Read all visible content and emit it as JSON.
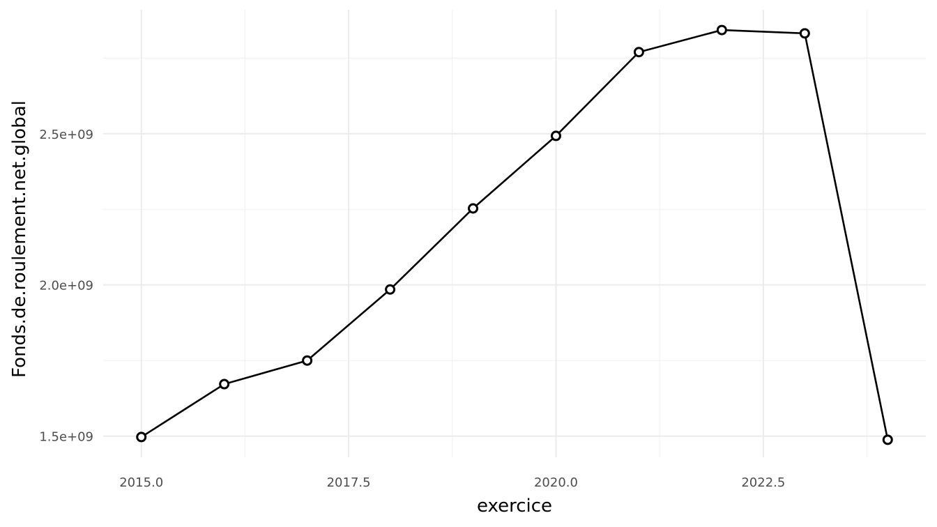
{
  "chart_data": {
    "type": "line",
    "title": "",
    "xlabel": "exercice",
    "ylabel": "Fonds.de.roulement.net.global",
    "x": [
      2015,
      2016,
      2017,
      2018,
      2019,
      2020,
      2021,
      2022,
      2023,
      2024
    ],
    "series": [
      {
        "values": [
          1497000000,
          1672000000,
          1750000000,
          1985000000,
          2253000000,
          2493000000,
          2770000000,
          2843000000,
          2832000000,
          1488000000
        ]
      }
    ],
    "xlim": [
      2014.54,
      2024.46
    ],
    "ylim": [
      1430000000.0,
      2910000000.0
    ],
    "x_ticks": [
      2015.0,
      2017.5,
      2020.0,
      2022.5
    ],
    "x_tick_labels": [
      "2015.0",
      "2017.5",
      "2020.0",
      "2022.5"
    ],
    "x_minor_ticks": [
      2016.25,
      2018.75,
      2021.25,
      2023.75
    ],
    "y_ticks": [
      1500000000.0,
      2000000000.0,
      2500000000.0
    ],
    "y_tick_labels": [
      "1.5e+09",
      "2.0e+09",
      "2.5e+09"
    ],
    "y_minor_ticks": [
      1750000000.0,
      2250000000.0,
      2750000000.0
    ],
    "grid": true,
    "legend": "none",
    "line_color": "#000000",
    "point_fill": "#ffffff",
    "grid_color": "#ebebeb"
  }
}
